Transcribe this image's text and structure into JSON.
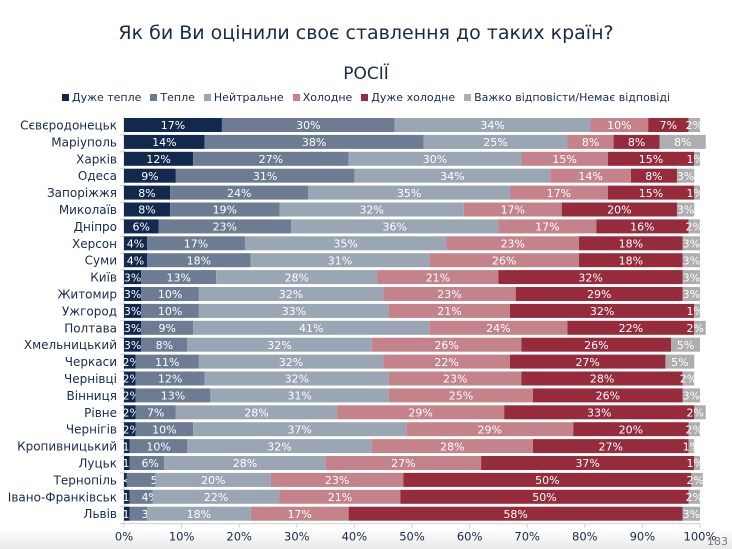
{
  "page": {
    "title": "Як би Ви оцінили своє ставлення до таких країн?",
    "page_number": "183"
  },
  "chart_data": {
    "type": "bar",
    "orientation": "horizontal",
    "stacked": true,
    "title": "РОСІЇ",
    "xlabel": "",
    "ylabel": "",
    "xlim": [
      0,
      100
    ],
    "x_ticks": [
      "0%",
      "10%",
      "20%",
      "30%",
      "40%",
      "50%",
      "60%",
      "70%",
      "80%",
      "90%",
      "100%"
    ],
    "legend_position": "top",
    "grid": false,
    "categories": [
      "Сєвєродонецьк",
      "Маріуполь",
      "Харків",
      "Одеса",
      "Запоріжжя",
      "Миколаїв",
      "Дніпро",
      "Херсон",
      "Суми",
      "Київ",
      "Житомир",
      "Ужгород",
      "Полтава",
      "Хмельницький",
      "Черкаси",
      "Чернівці",
      "Вінниця",
      "Рівне",
      "Чернігів",
      "Кропивницький",
      "Луцьк",
      "Тернопіль",
      "Івано-Франківськ",
      "Львів"
    ],
    "series": [
      {
        "name": "Дуже тепле",
        "color": "#13284d",
        "values": [
          17,
          14,
          12,
          9,
          8,
          8,
          6,
          4,
          4,
          3,
          3,
          3,
          3,
          3,
          2,
          2,
          2,
          2,
          2,
          1,
          1,
          0.5,
          1,
          1
        ],
        "labels": [
          "17%",
          "14%",
          "12%",
          "9%",
          "8%",
          "8%",
          "6%",
          "4%",
          "4%",
          "3%",
          "3%",
          "3%",
          "3%",
          "3%",
          "2%",
          "2%",
          "2%",
          "2%",
          "2%",
          "1%",
          "1%",
          "<1%",
          "1%",
          "1%"
        ]
      },
      {
        "name": "Тепле",
        "color": "#6d7c93",
        "values": [
          30,
          38,
          27,
          31,
          24,
          19,
          23,
          17,
          18,
          13,
          10,
          10,
          9,
          8,
          11,
          12,
          13,
          7,
          10,
          10,
          6,
          5,
          4,
          3
        ],
        "labels": [
          "30%",
          "38%",
          "27%",
          "31%",
          "24%",
          "19%",
          "23%",
          "17%",
          "18%",
          "13%",
          "10%",
          "10%",
          "9%",
          "8%",
          "11%",
          "12%",
          "13%",
          "7%",
          "10%",
          "10%",
          "6%",
          "5%",
          "4%",
          "3%"
        ]
      },
      {
        "name": "Нейтральне",
        "color": "#9ba6b5",
        "values": [
          34,
          25,
          30,
          34,
          35,
          32,
          36,
          35,
          31,
          28,
          32,
          33,
          41,
          32,
          32,
          32,
          31,
          28,
          37,
          32,
          28,
          20,
          22,
          18
        ],
        "labels": [
          "34%",
          "25%",
          "30%",
          "34%",
          "35%",
          "32%",
          "36%",
          "35%",
          "31%",
          "28%",
          "32%",
          "33%",
          "41%",
          "32%",
          "32%",
          "32%",
          "31%",
          "28%",
          "37%",
          "32%",
          "28%",
          "20%",
          "22%",
          "18%"
        ]
      },
      {
        "name": "Холодне",
        "color": "#c4838b",
        "values": [
          10,
          8,
          15,
          14,
          17,
          17,
          17,
          23,
          26,
          21,
          23,
          21,
          24,
          26,
          22,
          23,
          25,
          29,
          29,
          28,
          27,
          23,
          21,
          17
        ],
        "labels": [
          "10%",
          "8%",
          "15%",
          "14%",
          "17%",
          "17%",
          "17%",
          "23%",
          "26%",
          "21%",
          "23%",
          "21%",
          "24%",
          "26%",
          "22%",
          "23%",
          "25%",
          "29%",
          "29%",
          "28%",
          "27%",
          "23%",
          "21%",
          "17%"
        ]
      },
      {
        "name": "Дуже холодне",
        "color": "#962b3c",
        "values": [
          7,
          8,
          15,
          8,
          15,
          20,
          16,
          18,
          18,
          32,
          29,
          32,
          22,
          26,
          27,
          28,
          26,
          33,
          20,
          27,
          37,
          50,
          50,
          58
        ],
        "labels": [
          "7%",
          "8%",
          "15%",
          "8%",
          "15%",
          "20%",
          "16%",
          "18%",
          "18%",
          "32%",
          "29%",
          "32%",
          "22%",
          "26%",
          "27%",
          "28%",
          "26%",
          "33%",
          "20%",
          "27%",
          "37%",
          "50%",
          "50%",
          "58%"
        ]
      },
      {
        "name": "Важко відповісти/Немає відповіді",
        "color": "#aeaeae",
        "values": [
          2,
          8,
          1,
          3,
          1,
          3,
          2,
          3,
          3,
          3,
          3,
          1,
          2,
          5,
          5,
          2,
          3,
          2,
          2,
          1,
          1,
          2,
          2,
          3
        ],
        "labels": [
          "2%",
          "8%",
          "1%",
          "3%",
          "1%",
          "3%",
          "2%",
          "3%",
          "3%",
          "3%",
          "3%",
          "1%",
          "2%",
          "5%",
          "5%",
          "2%",
          "3%",
          "2%",
          "2%",
          "1%",
          "1%",
          "2%",
          "2%",
          "3%"
        ]
      }
    ]
  }
}
